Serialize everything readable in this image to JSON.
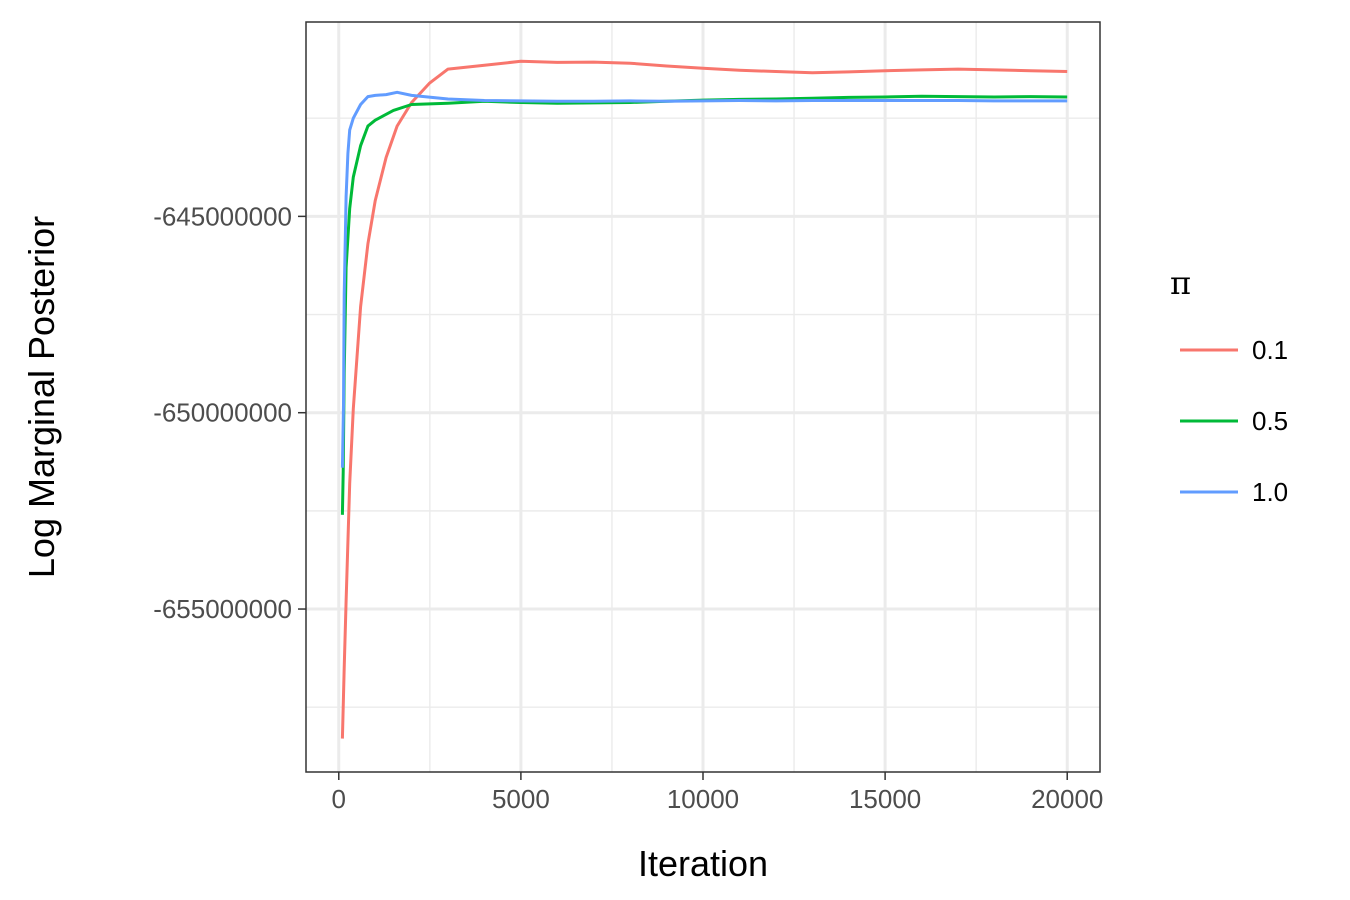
{
  "chart_data": {
    "type": "line",
    "xlabel": "Iteration",
    "ylabel": "Log Marginal Posterior",
    "xlim": [
      -900,
      20900
    ],
    "ylim": [
      -659150000,
      -640050000
    ],
    "xticks": [
      0,
      5000,
      10000,
      15000,
      20000
    ],
    "xtick_labels": [
      "0",
      "5000",
      "10000",
      "15000",
      "20000"
    ],
    "yticks": [
      -655000000,
      -650000000,
      -645000000
    ],
    "ytick_labels": [
      "-655000000",
      "-650000000",
      "-645000000"
    ],
    "grid": true,
    "legend": {
      "title": "π",
      "position": "right"
    },
    "series": [
      {
        "name": "0.1",
        "color": "#F8766D",
        "points": [
          [
            100,
            -658300000
          ],
          [
            150,
            -656500000
          ],
          [
            200,
            -654800000
          ],
          [
            300,
            -651800000
          ],
          [
            400,
            -649900000
          ],
          [
            600,
            -647300000
          ],
          [
            800,
            -645700000
          ],
          [
            1000,
            -644600000
          ],
          [
            1300,
            -643500000
          ],
          [
            1600,
            -642700000
          ],
          [
            2000,
            -642100000
          ],
          [
            2500,
            -641600000
          ],
          [
            3000,
            -641250000
          ],
          [
            4000,
            -641150000
          ],
          [
            5000,
            -641050000
          ],
          [
            6000,
            -641080000
          ],
          [
            7000,
            -641070000
          ],
          [
            8000,
            -641100000
          ],
          [
            9000,
            -641170000
          ],
          [
            10000,
            -641230000
          ],
          [
            11000,
            -641280000
          ],
          [
            12000,
            -641310000
          ],
          [
            13000,
            -641340000
          ],
          [
            14000,
            -641320000
          ],
          [
            15000,
            -641290000
          ],
          [
            16000,
            -641270000
          ],
          [
            17000,
            -641250000
          ],
          [
            18000,
            -641270000
          ],
          [
            19000,
            -641290000
          ],
          [
            20000,
            -641310000
          ]
        ]
      },
      {
        "name": "0.5",
        "color": "#00BA38",
        "points": [
          [
            100,
            -652600000
          ],
          [
            120,
            -651500000
          ],
          [
            150,
            -649000000
          ],
          [
            200,
            -646300000
          ],
          [
            300,
            -644800000
          ],
          [
            400,
            -644000000
          ],
          [
            600,
            -643200000
          ],
          [
            800,
            -642700000
          ],
          [
            1000,
            -642550000
          ],
          [
            1500,
            -642300000
          ],
          [
            2000,
            -642150000
          ],
          [
            3000,
            -642120000
          ],
          [
            4000,
            -642070000
          ],
          [
            5000,
            -642100000
          ],
          [
            6000,
            -642120000
          ],
          [
            7000,
            -642110000
          ],
          [
            8000,
            -642100000
          ],
          [
            9000,
            -642070000
          ],
          [
            10000,
            -642040000
          ],
          [
            11000,
            -642020000
          ],
          [
            12000,
            -642010000
          ],
          [
            13000,
            -641990000
          ],
          [
            14000,
            -641970000
          ],
          [
            15000,
            -641960000
          ],
          [
            16000,
            -641940000
          ],
          [
            17000,
            -641950000
          ],
          [
            18000,
            -641960000
          ],
          [
            19000,
            -641950000
          ],
          [
            20000,
            -641960000
          ]
        ]
      },
      {
        "name": "1.0",
        "color": "#619CFF",
        "points": [
          [
            100,
            -651400000
          ],
          [
            130,
            -649800000
          ],
          [
            150,
            -647000000
          ],
          [
            200,
            -644500000
          ],
          [
            250,
            -643400000
          ],
          [
            300,
            -642800000
          ],
          [
            400,
            -642500000
          ],
          [
            600,
            -642150000
          ],
          [
            800,
            -641950000
          ],
          [
            1000,
            -641920000
          ],
          [
            1300,
            -641900000
          ],
          [
            1600,
            -641840000
          ],
          [
            2000,
            -641920000
          ],
          [
            3000,
            -642010000
          ],
          [
            4000,
            -642050000
          ],
          [
            5000,
            -642060000
          ],
          [
            6000,
            -642070000
          ],
          [
            7000,
            -642070000
          ],
          [
            8000,
            -642060000
          ],
          [
            9000,
            -642070000
          ],
          [
            10000,
            -642060000
          ],
          [
            11000,
            -642050000
          ],
          [
            12000,
            -642060000
          ],
          [
            13000,
            -642050000
          ],
          [
            14000,
            -642050000
          ],
          [
            15000,
            -642050000
          ],
          [
            16000,
            -642050000
          ],
          [
            17000,
            -642050000
          ],
          [
            18000,
            -642060000
          ],
          [
            19000,
            -642060000
          ],
          [
            20000,
            -642060000
          ]
        ]
      }
    ]
  }
}
